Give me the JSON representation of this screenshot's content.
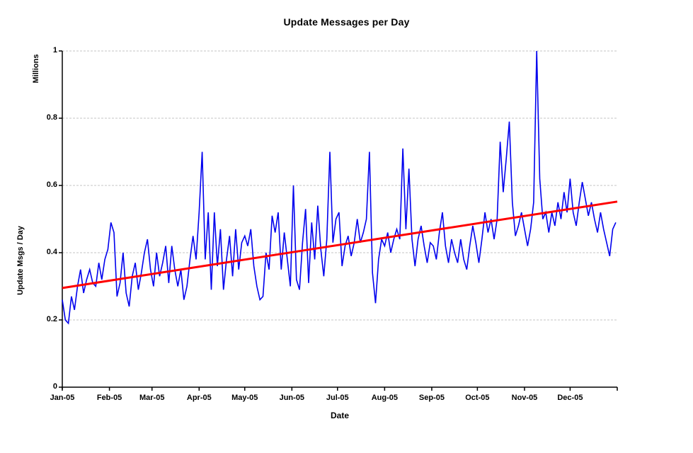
{
  "colors": {
    "daily_series": "#0000EE",
    "trend_line": "#FF0000",
    "gridline": "#C6C6C6",
    "axis": "#000000",
    "background": "#FFFFFF",
    "text": "#000000"
  },
  "chart_data": {
    "type": "line",
    "title": "Update Messages per Day",
    "xlabel": "Date",
    "ylabel": "Update Msgs / Day",
    "ylabel_units": "Millions",
    "ylim": [
      0,
      1
    ],
    "ytick_values": [
      0,
      0.2,
      0.4,
      0.6,
      0.8,
      1
    ],
    "ytick_labels": [
      "0",
      "0.2",
      "0.4",
      "0.6",
      "0.8",
      "1"
    ],
    "xtick_labels": [
      "Jan-05",
      "Feb-05",
      "Mar-05",
      "Apr-05",
      "May-05",
      "Jun-05",
      "Jul-05",
      "Aug-05",
      "Sep-05",
      "Oct-05",
      "Nov-05",
      "Dec-05"
    ],
    "xtick_days": [
      0,
      31,
      59,
      90,
      120,
      151,
      181,
      212,
      243,
      273,
      304,
      334
    ],
    "x_total_days": 365,
    "grid": "horizontal dashed",
    "legend": "none",
    "x_sample_step_days": 2,
    "series": [
      {
        "name": "Update messages per day (daily values, millions, sampled every 2 days)",
        "color": "#0000EE",
        "style": "jagged line",
        "values": [
          0.26,
          0.2,
          0.19,
          0.27,
          0.23,
          0.3,
          0.35,
          0.28,
          0.32,
          0.35,
          0.31,
          0.3,
          0.37,
          0.32,
          0.38,
          0.41,
          0.49,
          0.46,
          0.27,
          0.31,
          0.4,
          0.28,
          0.24,
          0.33,
          0.37,
          0.29,
          0.34,
          0.4,
          0.44,
          0.35,
          0.3,
          0.4,
          0.33,
          0.37,
          0.42,
          0.31,
          0.42,
          0.35,
          0.3,
          0.35,
          0.26,
          0.3,
          0.38,
          0.45,
          0.38,
          0.52,
          0.7,
          0.38,
          0.52,
          0.29,
          0.52,
          0.36,
          0.47,
          0.29,
          0.38,
          0.45,
          0.33,
          0.47,
          0.35,
          0.43,
          0.45,
          0.42,
          0.47,
          0.36,
          0.3,
          0.26,
          0.27,
          0.4,
          0.35,
          0.51,
          0.46,
          0.52,
          0.35,
          0.46,
          0.38,
          0.3,
          0.6,
          0.32,
          0.29,
          0.43,
          0.53,
          0.31,
          0.49,
          0.38,
          0.54,
          0.41,
          0.33,
          0.44,
          0.7,
          0.43,
          0.5,
          0.52,
          0.36,
          0.42,
          0.45,
          0.39,
          0.43,
          0.5,
          0.43,
          0.46,
          0.5,
          0.7,
          0.34,
          0.25,
          0.38,
          0.44,
          0.42,
          0.46,
          0.4,
          0.44,
          0.47,
          0.44,
          0.71,
          0.47,
          0.65,
          0.44,
          0.36,
          0.44,
          0.48,
          0.42,
          0.37,
          0.43,
          0.42,
          0.38,
          0.46,
          0.52,
          0.42,
          0.37,
          0.44,
          0.4,
          0.37,
          0.44,
          0.38,
          0.35,
          0.42,
          0.48,
          0.43,
          0.37,
          0.44,
          0.52,
          0.46,
          0.5,
          0.44,
          0.5,
          0.73,
          0.58,
          0.68,
          0.79,
          0.55,
          0.45,
          0.48,
          0.52,
          0.47,
          0.42,
          0.47,
          0.55,
          1.0,
          0.62,
          0.5,
          0.52,
          0.46,
          0.52,
          0.48,
          0.55,
          0.5,
          0.58,
          0.52,
          0.62,
          0.52,
          0.48,
          0.55,
          0.61,
          0.56,
          0.51,
          0.55,
          0.5,
          0.46,
          0.52,
          0.47,
          0.43,
          0.39,
          0.47,
          0.49
        ]
      },
      {
        "name": "Linear trend",
        "color": "#FF0000",
        "style": "straight line",
        "x_days": [
          0,
          365
        ],
        "values": [
          0.295,
          0.552
        ]
      }
    ]
  }
}
